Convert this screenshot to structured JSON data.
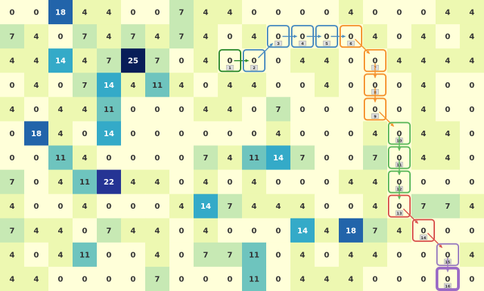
{
  "chart_data": {
    "type": "heatmap",
    "colormap": "YlGnBu",
    "value_range": [
      0,
      25
    ],
    "grid": false,
    "values": [
      [
        0,
        0,
        18,
        4,
        4,
        0,
        0,
        7,
        4,
        4,
        0,
        0,
        0,
        0,
        4,
        0,
        0,
        0,
        4,
        4
      ],
      [
        7,
        4,
        0,
        7,
        4,
        7,
        4,
        7,
        4,
        0,
        4,
        0,
        0,
        0,
        0,
        4,
        0,
        4,
        0,
        4
      ],
      [
        4,
        4,
        14,
        4,
        7,
        25,
        7,
        0,
        4,
        0,
        0,
        0,
        4,
        4,
        0,
        0,
        4,
        4,
        4,
        4
      ],
      [
        0,
        4,
        0,
        7,
        14,
        4,
        11,
        4,
        0,
        4,
        4,
        0,
        0,
        4,
        0,
        0,
        0,
        4,
        0,
        0
      ],
      [
        4,
        0,
        4,
        4,
        11,
        0,
        0,
        0,
        4,
        4,
        0,
        7,
        0,
        0,
        0,
        0,
        0,
        4,
        0,
        0
      ],
      [
        0,
        18,
        4,
        0,
        14,
        0,
        0,
        0,
        0,
        0,
        0,
        4,
        0,
        0,
        0,
        4,
        0,
        4,
        4,
        0
      ],
      [
        0,
        0,
        11,
        4,
        0,
        0,
        0,
        0,
        7,
        4,
        11,
        14,
        7,
        0,
        0,
        7,
        0,
        4,
        4,
        0
      ],
      [
        7,
        0,
        4,
        11,
        22,
        4,
        4,
        0,
        4,
        0,
        4,
        0,
        0,
        0,
        4,
        4,
        0,
        0,
        0,
        0
      ],
      [
        4,
        0,
        0,
        4,
        0,
        0,
        0,
        4,
        14,
        7,
        4,
        4,
        4,
        0,
        0,
        4,
        0,
        7,
        7,
        4
      ],
      [
        7,
        4,
        4,
        0,
        7,
        4,
        4,
        0,
        4,
        0,
        0,
        0,
        14,
        4,
        18,
        7,
        4,
        0,
        0,
        0
      ],
      [
        4,
        0,
        4,
        11,
        0,
        0,
        4,
        0,
        7,
        7,
        11,
        0,
        4,
        0,
        4,
        4,
        0,
        0,
        0,
        4
      ],
      [
        4,
        4,
        0,
        0,
        0,
        0,
        7,
        0,
        0,
        0,
        11,
        0,
        4,
        4,
        4,
        0,
        0,
        0,
        0,
        0
      ]
    ],
    "path": [
      {
        "step": "1",
        "row": 2,
        "col": 9,
        "color": "#2d8a2d"
      },
      {
        "step": "2",
        "row": 2,
        "col": 10,
        "color": "#4a8cc0"
      },
      {
        "step": "3",
        "row": 1,
        "col": 11,
        "color": "#4a8cc0"
      },
      {
        "step": "4",
        "row": 1,
        "col": 12,
        "color": "#4a8cc0"
      },
      {
        "step": "5",
        "row": 1,
        "col": 13,
        "color": "#4a8cc0"
      },
      {
        "step": "6",
        "row": 1,
        "col": 14,
        "color": "#f5922e"
      },
      {
        "step": "7",
        "row": 2,
        "col": 15,
        "color": "#f5922e"
      },
      {
        "step": "8",
        "row": 3,
        "col": 15,
        "color": "#f5922e"
      },
      {
        "step": "9",
        "row": 4,
        "col": 15,
        "color": "#f5922e"
      },
      {
        "step": "10",
        "row": 5,
        "col": 16,
        "color": "#5cb85c"
      },
      {
        "step": "11",
        "row": 6,
        "col": 16,
        "color": "#5cb85c"
      },
      {
        "step": "12",
        "row": 7,
        "col": 16,
        "color": "#5cb85c"
      },
      {
        "step": "13",
        "row": 8,
        "col": 16,
        "color": "#d9534f"
      },
      {
        "step": "14",
        "row": 9,
        "col": 17,
        "color": "#d9534f"
      },
      {
        "step": "15",
        "row": 10,
        "col": 18,
        "color": "#9b7fc0"
      },
      {
        "step": "16",
        "row": 11,
        "col": 18,
        "color": "#9b6cc6"
      }
    ]
  }
}
